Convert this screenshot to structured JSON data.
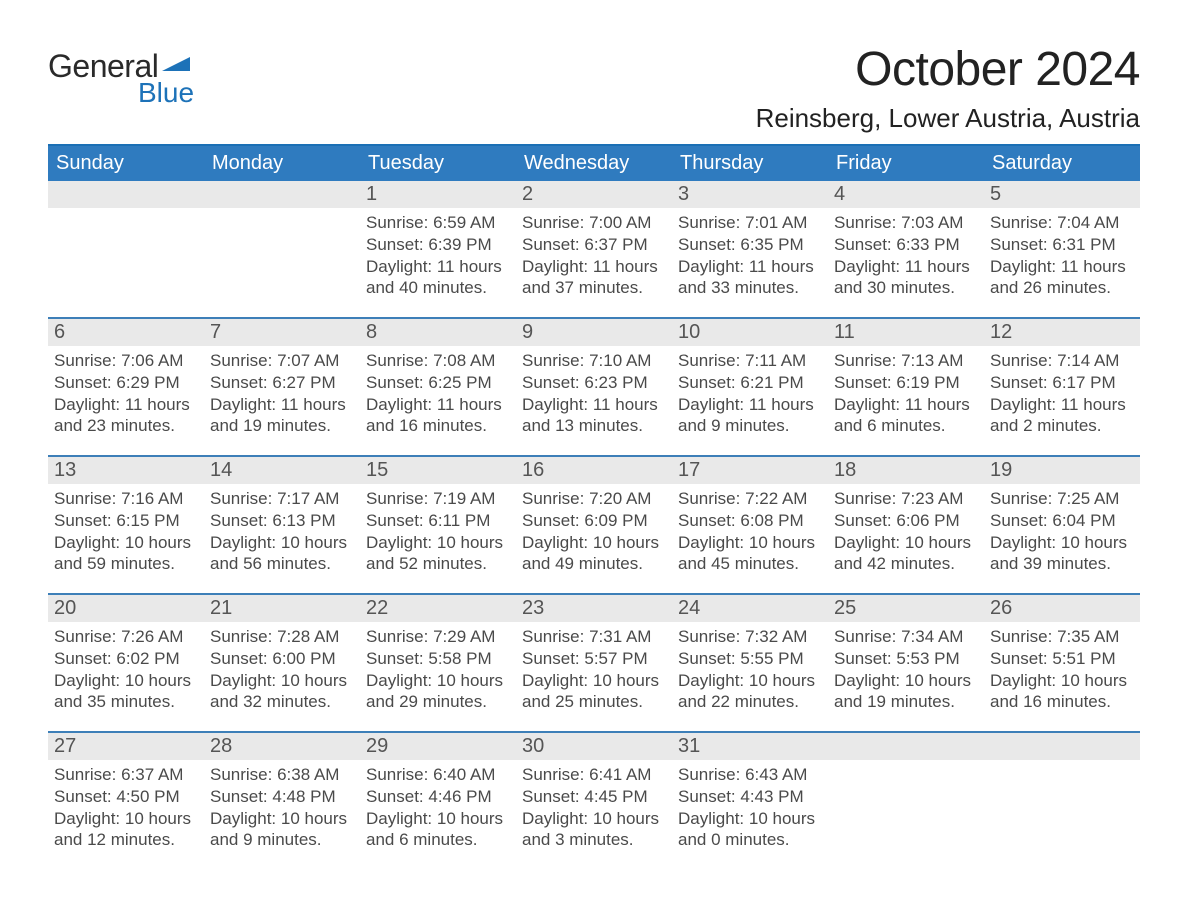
{
  "logo": {
    "top": "General",
    "bottom": "Blue"
  },
  "header": {
    "month_title": "October 2024",
    "location": "Reinsberg, Lower Austria, Austria"
  },
  "colors": {
    "header_blue": "#2f7bbf",
    "accent_blue": "#1a6fb5",
    "daynum_bg": "#e9e9e9",
    "daynum_border": "#3d7fb8",
    "text_dark": "#3a3a3a",
    "logo_blue": "#1d72b8",
    "background": "#ffffff"
  },
  "days_of_week": [
    "Sunday",
    "Monday",
    "Tuesday",
    "Wednesday",
    "Thursday",
    "Friday",
    "Saturday"
  ],
  "weeks": [
    [
      {
        "num": "",
        "sunrise": "",
        "sunset": "",
        "daylight": ""
      },
      {
        "num": "",
        "sunrise": "",
        "sunset": "",
        "daylight": ""
      },
      {
        "num": "1",
        "sunrise": "Sunrise: 6:59 AM",
        "sunset": "Sunset: 6:39 PM",
        "daylight": "Daylight: 11 hours and 40 minutes."
      },
      {
        "num": "2",
        "sunrise": "Sunrise: 7:00 AM",
        "sunset": "Sunset: 6:37 PM",
        "daylight": "Daylight: 11 hours and 37 minutes."
      },
      {
        "num": "3",
        "sunrise": "Sunrise: 7:01 AM",
        "sunset": "Sunset: 6:35 PM",
        "daylight": "Daylight: 11 hours and 33 minutes."
      },
      {
        "num": "4",
        "sunrise": "Sunrise: 7:03 AM",
        "sunset": "Sunset: 6:33 PM",
        "daylight": "Daylight: 11 hours and 30 minutes."
      },
      {
        "num": "5",
        "sunrise": "Sunrise: 7:04 AM",
        "sunset": "Sunset: 6:31 PM",
        "daylight": "Daylight: 11 hours and 26 minutes."
      }
    ],
    [
      {
        "num": "6",
        "sunrise": "Sunrise: 7:06 AM",
        "sunset": "Sunset: 6:29 PM",
        "daylight": "Daylight: 11 hours and 23 minutes."
      },
      {
        "num": "7",
        "sunrise": "Sunrise: 7:07 AM",
        "sunset": "Sunset: 6:27 PM",
        "daylight": "Daylight: 11 hours and 19 minutes."
      },
      {
        "num": "8",
        "sunrise": "Sunrise: 7:08 AM",
        "sunset": "Sunset: 6:25 PM",
        "daylight": "Daylight: 11 hours and 16 minutes."
      },
      {
        "num": "9",
        "sunrise": "Sunrise: 7:10 AM",
        "sunset": "Sunset: 6:23 PM",
        "daylight": "Daylight: 11 hours and 13 minutes."
      },
      {
        "num": "10",
        "sunrise": "Sunrise: 7:11 AM",
        "sunset": "Sunset: 6:21 PM",
        "daylight": "Daylight: 11 hours and 9 minutes."
      },
      {
        "num": "11",
        "sunrise": "Sunrise: 7:13 AM",
        "sunset": "Sunset: 6:19 PM",
        "daylight": "Daylight: 11 hours and 6 minutes."
      },
      {
        "num": "12",
        "sunrise": "Sunrise: 7:14 AM",
        "sunset": "Sunset: 6:17 PM",
        "daylight": "Daylight: 11 hours and 2 minutes."
      }
    ],
    [
      {
        "num": "13",
        "sunrise": "Sunrise: 7:16 AM",
        "sunset": "Sunset: 6:15 PM",
        "daylight": "Daylight: 10 hours and 59 minutes."
      },
      {
        "num": "14",
        "sunrise": "Sunrise: 7:17 AM",
        "sunset": "Sunset: 6:13 PM",
        "daylight": "Daylight: 10 hours and 56 minutes."
      },
      {
        "num": "15",
        "sunrise": "Sunrise: 7:19 AM",
        "sunset": "Sunset: 6:11 PM",
        "daylight": "Daylight: 10 hours and 52 minutes."
      },
      {
        "num": "16",
        "sunrise": "Sunrise: 7:20 AM",
        "sunset": "Sunset: 6:09 PM",
        "daylight": "Daylight: 10 hours and 49 minutes."
      },
      {
        "num": "17",
        "sunrise": "Sunrise: 7:22 AM",
        "sunset": "Sunset: 6:08 PM",
        "daylight": "Daylight: 10 hours and 45 minutes."
      },
      {
        "num": "18",
        "sunrise": "Sunrise: 7:23 AM",
        "sunset": "Sunset: 6:06 PM",
        "daylight": "Daylight: 10 hours and 42 minutes."
      },
      {
        "num": "19",
        "sunrise": "Sunrise: 7:25 AM",
        "sunset": "Sunset: 6:04 PM",
        "daylight": "Daylight: 10 hours and 39 minutes."
      }
    ],
    [
      {
        "num": "20",
        "sunrise": "Sunrise: 7:26 AM",
        "sunset": "Sunset: 6:02 PM",
        "daylight": "Daylight: 10 hours and 35 minutes."
      },
      {
        "num": "21",
        "sunrise": "Sunrise: 7:28 AM",
        "sunset": "Sunset: 6:00 PM",
        "daylight": "Daylight: 10 hours and 32 minutes."
      },
      {
        "num": "22",
        "sunrise": "Sunrise: 7:29 AM",
        "sunset": "Sunset: 5:58 PM",
        "daylight": "Daylight: 10 hours and 29 minutes."
      },
      {
        "num": "23",
        "sunrise": "Sunrise: 7:31 AM",
        "sunset": "Sunset: 5:57 PM",
        "daylight": "Daylight: 10 hours and 25 minutes."
      },
      {
        "num": "24",
        "sunrise": "Sunrise: 7:32 AM",
        "sunset": "Sunset: 5:55 PM",
        "daylight": "Daylight: 10 hours and 22 minutes."
      },
      {
        "num": "25",
        "sunrise": "Sunrise: 7:34 AM",
        "sunset": "Sunset: 5:53 PM",
        "daylight": "Daylight: 10 hours and 19 minutes."
      },
      {
        "num": "26",
        "sunrise": "Sunrise: 7:35 AM",
        "sunset": "Sunset: 5:51 PM",
        "daylight": "Daylight: 10 hours and 16 minutes."
      }
    ],
    [
      {
        "num": "27",
        "sunrise": "Sunrise: 6:37 AM",
        "sunset": "Sunset: 4:50 PM",
        "daylight": "Daylight: 10 hours and 12 minutes."
      },
      {
        "num": "28",
        "sunrise": "Sunrise: 6:38 AM",
        "sunset": "Sunset: 4:48 PM",
        "daylight": "Daylight: 10 hours and 9 minutes."
      },
      {
        "num": "29",
        "sunrise": "Sunrise: 6:40 AM",
        "sunset": "Sunset: 4:46 PM",
        "daylight": "Daylight: 10 hours and 6 minutes."
      },
      {
        "num": "30",
        "sunrise": "Sunrise: 6:41 AM",
        "sunset": "Sunset: 4:45 PM",
        "daylight": "Daylight: 10 hours and 3 minutes."
      },
      {
        "num": "31",
        "sunrise": "Sunrise: 6:43 AM",
        "sunset": "Sunset: 4:43 PM",
        "daylight": "Daylight: 10 hours and 0 minutes."
      },
      {
        "num": "",
        "sunrise": "",
        "sunset": "",
        "daylight": ""
      },
      {
        "num": "",
        "sunrise": "",
        "sunset": "",
        "daylight": ""
      }
    ]
  ]
}
